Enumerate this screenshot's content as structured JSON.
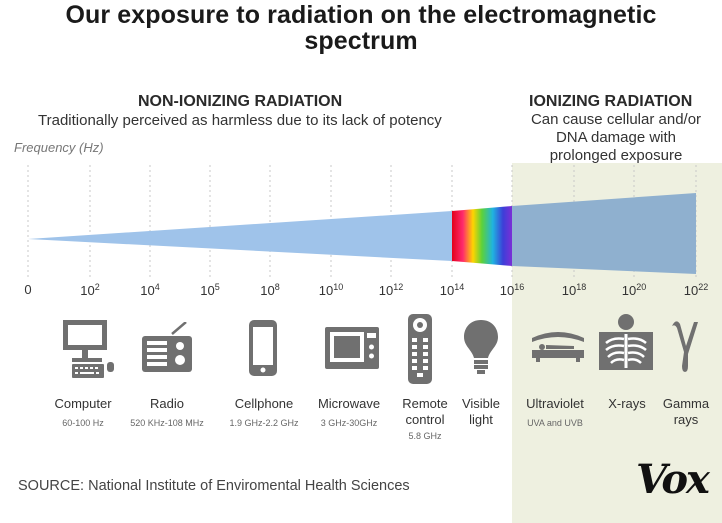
{
  "title_line1": "Our exposure to radiation on the electromagnetic",
  "title_line2": "spectrum",
  "non_ionizing": {
    "heading": "NON-IONIZING RADIATION",
    "description": "Traditionally perceived as harmless due to its lack of potency"
  },
  "ionizing": {
    "heading": "IONIZING RADIATION",
    "desc_line1": "Can cause cellular and/or",
    "desc_line2": "DNA damage with",
    "desc_line3": "prolonged exposure"
  },
  "axis_label": "Frequency (Hz)",
  "ticks": [
    {
      "base": "0",
      "exp": ""
    },
    {
      "base": "10",
      "exp": "2"
    },
    {
      "base": "10",
      "exp": "4"
    },
    {
      "base": "10",
      "exp": "5"
    },
    {
      "base": "10",
      "exp": "8"
    },
    {
      "base": "10",
      "exp": "10"
    },
    {
      "base": "10",
      "exp": "12"
    },
    {
      "base": "10",
      "exp": "14"
    },
    {
      "base": "10",
      "exp": "16"
    },
    {
      "base": "10",
      "exp": "18"
    },
    {
      "base": "10",
      "exp": "20"
    },
    {
      "base": "10",
      "exp": "22"
    }
  ],
  "sources": [
    {
      "name": "Computer",
      "range": "60-100 Hz",
      "icon": "computer-icon"
    },
    {
      "name": "Radio",
      "range": "520 KHz-108 MHz",
      "icon": "radio-icon"
    },
    {
      "name": "Cellphone",
      "range": "1.9 GHz-2.2 GHz",
      "icon": "cellphone-icon"
    },
    {
      "name": "Microwave",
      "range": "3 GHz-30GHz",
      "icon": "microwave-icon"
    },
    {
      "name_line1": "Remote",
      "name_line2": "control",
      "range": "5.8 GHz",
      "icon": "remote-control-icon"
    },
    {
      "name_line1": "Visible",
      "name_line2": "light",
      "range": "",
      "icon": "lightbulb-icon"
    },
    {
      "name": "Ultraviolet",
      "range": "UVA and UVB",
      "icon": "tanning-bed-icon"
    },
    {
      "name": "X-rays",
      "range": "",
      "icon": "xray-icon"
    },
    {
      "name_line1": "Gamma",
      "name_line2": "rays",
      "range": "",
      "icon": "gamma-icon"
    }
  ],
  "source_note": "SOURCE: National Institute of Enviromental Health Sciences",
  "brand": "Vox",
  "colors": {
    "wedge": "#9fc3ea",
    "ionizing_wedge": "#8fb0cf",
    "ionizing_bg": "#eef0e0",
    "icons": "#707070"
  }
}
